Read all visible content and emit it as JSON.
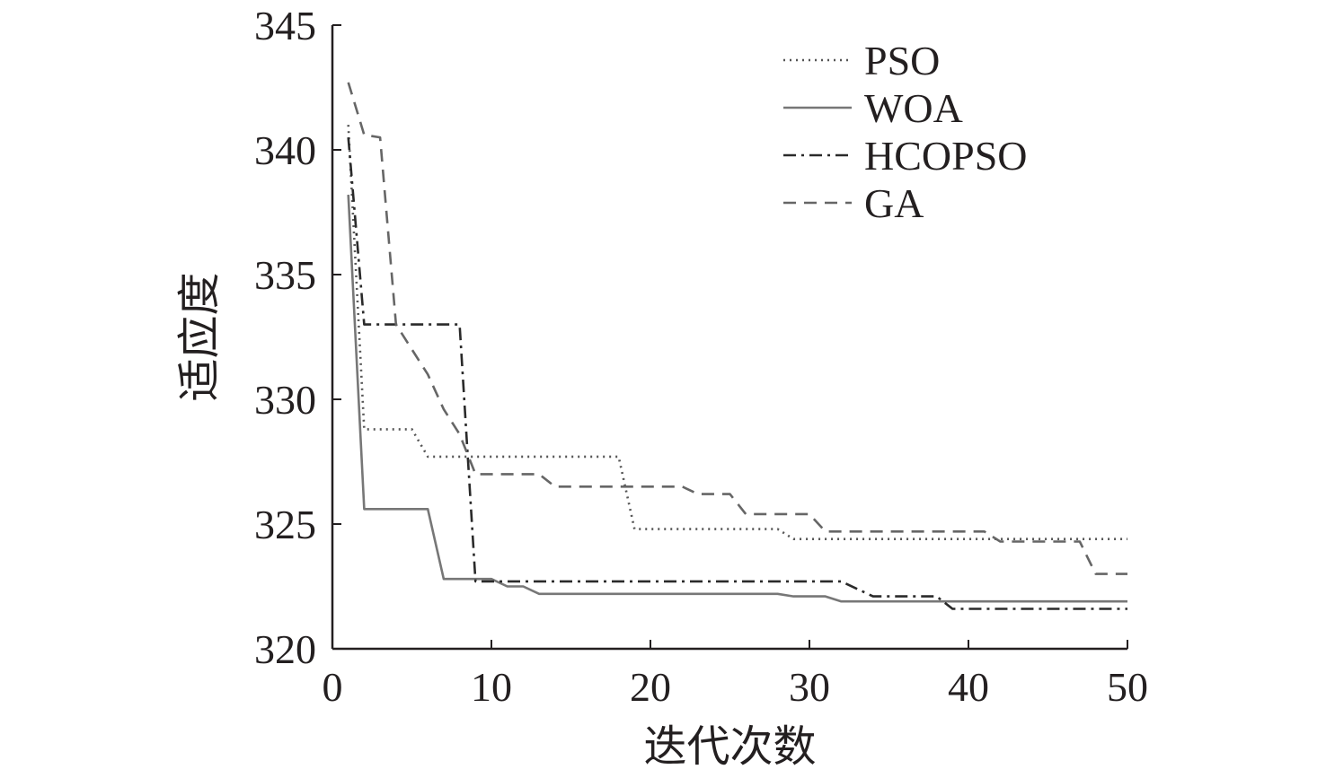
{
  "chart_data": {
    "type": "line",
    "xlabel": "迭代次数",
    "ylabel": "适应度",
    "xlim": [
      0,
      50
    ],
    "ylim": [
      320,
      345
    ],
    "x_ticks": [
      0,
      10,
      20,
      30,
      40,
      50
    ],
    "y_ticks": [
      320,
      325,
      330,
      335,
      340,
      345
    ],
    "x_tick_labels": [
      "0",
      "10",
      "20",
      "30",
      "40",
      "50"
    ],
    "y_tick_labels": [
      "320",
      "325",
      "330",
      "335",
      "340",
      "345"
    ],
    "legend_position": "top-right",
    "grid": false,
    "series": [
      {
        "name": "PSO",
        "style": "dotted",
        "color": "#555555",
        "points": [
          [
            1,
            341.0
          ],
          [
            2,
            328.8
          ],
          [
            5,
            328.8
          ],
          [
            6,
            327.7
          ],
          [
            18,
            327.7
          ],
          [
            19,
            324.8
          ],
          [
            28,
            324.8
          ],
          [
            29,
            324.4
          ],
          [
            50,
            324.4
          ]
        ]
      },
      {
        "name": "WOA",
        "style": "solid",
        "color": "#777777",
        "points": [
          [
            1,
            338.2
          ],
          [
            2,
            325.6
          ],
          [
            6,
            325.6
          ],
          [
            7,
            322.8
          ],
          [
            10,
            322.8
          ],
          [
            11,
            322.5
          ],
          [
            12,
            322.5
          ],
          [
            13,
            322.2
          ],
          [
            28,
            322.2
          ],
          [
            29,
            322.1
          ],
          [
            31,
            322.1
          ],
          [
            32,
            321.9
          ],
          [
            50,
            321.9
          ]
        ]
      },
      {
        "name": "HCOPSO",
        "style": "dashdot",
        "color": "#2a2a2a",
        "points": [
          [
            1,
            340.5
          ],
          [
            2,
            333.0
          ],
          [
            8,
            333.0
          ],
          [
            9,
            322.7
          ],
          [
            32,
            322.7
          ],
          [
            34,
            322.1
          ],
          [
            38,
            322.1
          ],
          [
            39,
            321.6
          ],
          [
            50,
            321.6
          ]
        ]
      },
      {
        "name": "GA",
        "style": "dashed",
        "color": "#666666",
        "points": [
          [
            1,
            342.7
          ],
          [
            2,
            340.6
          ],
          [
            3,
            340.5
          ],
          [
            4,
            333.0
          ],
          [
            5,
            332.0
          ],
          [
            6,
            331.0
          ],
          [
            7,
            329.6
          ],
          [
            8,
            328.6
          ],
          [
            9,
            327.0
          ],
          [
            13,
            327.0
          ],
          [
            14,
            326.5
          ],
          [
            22,
            326.5
          ],
          [
            23,
            326.2
          ],
          [
            25,
            326.2
          ],
          [
            26,
            325.4
          ],
          [
            30,
            325.4
          ],
          [
            31,
            324.7
          ],
          [
            41,
            324.7
          ],
          [
            42,
            324.3
          ],
          [
            47,
            324.3
          ],
          [
            48,
            323.0
          ],
          [
            50,
            323.0
          ]
        ]
      }
    ]
  }
}
